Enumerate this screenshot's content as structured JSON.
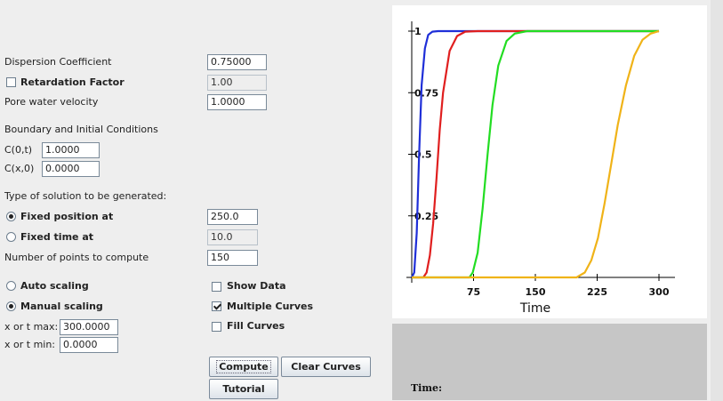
{
  "params": {
    "dispersion_label": "Dispersion Coefficient",
    "dispersion_value": "0.75000",
    "retardation_label": "Retardation Factor",
    "retardation_value": "1.00",
    "pore_label": "Pore water velocity",
    "pore_value": "1.0000"
  },
  "conditions": {
    "heading": "Boundary and Initial Conditions",
    "c0t_label": "C(0,t)",
    "c0t_value": "1.0000",
    "cx0_label": "C(x,0)",
    "cx0_value": "0.0000"
  },
  "solution": {
    "heading": "Type of solution to be generated:",
    "fixed_position_label": "Fixed position at",
    "fixed_position_value": "250.0",
    "fixed_time_label": "Fixed time at",
    "fixed_time_value": "10.0",
    "points_label": "Number of points to compute",
    "points_value": "150"
  },
  "scaling": {
    "auto_label": "Auto scaling",
    "manual_label": "Manual scaling",
    "xmax_label": "x or t max:",
    "xmax_value": "300.0000",
    "xmin_label": "x or t min:",
    "xmin_value": "0.0000"
  },
  "options": {
    "show_data_label": "Show Data",
    "show_data_checked": false,
    "multiple_curves_label": "Multiple Curves",
    "multiple_curves_checked": true,
    "fill_curves_label": "Fill Curves",
    "fill_curves_checked": false
  },
  "buttons": {
    "compute": "Compute",
    "clear_curves": "Clear Curves",
    "tutorial": "Tutorial"
  },
  "time_panel": {
    "label": "Time:"
  },
  "chart_data": {
    "type": "line",
    "title": "",
    "xlabel": "Time",
    "ylabel": "",
    "xlim": [
      0,
      300
    ],
    "ylim": [
      0,
      1
    ],
    "x_ticks": [
      75,
      150,
      225,
      300
    ],
    "y_ticks": [
      0.25,
      0.5,
      0.75,
      1
    ],
    "y_tick_labels": [
      "0.25",
      "0.5",
      "0.75",
      "1"
    ],
    "grid": false,
    "series": [
      {
        "color": "#1f2fd8",
        "x": [
          0,
          3,
          6,
          9,
          12,
          16,
          20,
          25,
          32,
          60,
          300
        ],
        "y": [
          0.0,
          0.02,
          0.18,
          0.5,
          0.78,
          0.93,
          0.985,
          0.998,
          1.0,
          1.0,
          1.0
        ]
      },
      {
        "color": "#e01f1f",
        "x": [
          0,
          8,
          14,
          18,
          22,
          26,
          30,
          34,
          38,
          46,
          55,
          65,
          80,
          300
        ],
        "y": [
          0.0,
          0.0,
          0.0,
          0.02,
          0.09,
          0.22,
          0.4,
          0.6,
          0.75,
          0.92,
          0.98,
          0.998,
          1.0,
          1.0
        ]
      },
      {
        "color": "#22dd22",
        "x": [
          0,
          60,
          70,
          74,
          80,
          86,
          92,
          98,
          105,
          115,
          125,
          140,
          300
        ],
        "y": [
          0.0,
          0.0,
          0.0,
          0.02,
          0.1,
          0.28,
          0.5,
          0.7,
          0.86,
          0.96,
          0.99,
          1.0,
          1.0
        ]
      },
      {
        "color": "#f0b318",
        "x": [
          0,
          180,
          200,
          210,
          218,
          226,
          234,
          242,
          250,
          260,
          270,
          280,
          290,
          300
        ],
        "y": [
          0.0,
          0.0,
          0.0,
          0.02,
          0.07,
          0.16,
          0.3,
          0.46,
          0.62,
          0.78,
          0.9,
          0.965,
          0.99,
          1.0
        ]
      }
    ]
  }
}
